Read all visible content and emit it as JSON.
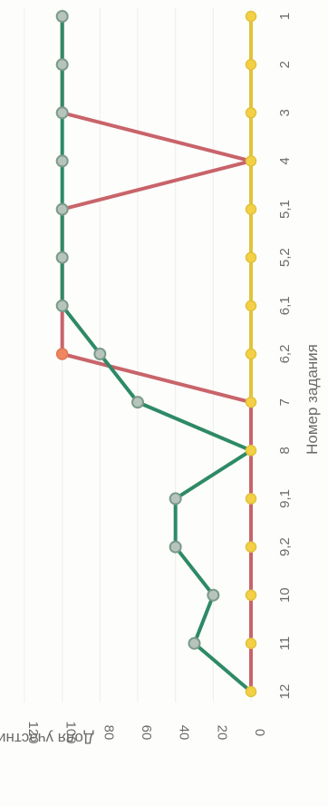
{
  "chart_data": {
    "type": "line",
    "title": "",
    "xlabel": "Номер задания",
    "ylabel": "Доля участников, %",
    "categories": [
      "1",
      "2",
      "3",
      "4",
      "5,1",
      "5,2",
      "6,1",
      "6,2",
      "7",
      "8",
      "9,1",
      "9,2",
      "10",
      "11",
      "12"
    ],
    "ylim": [
      0,
      120
    ],
    "yticks": [
      "0",
      "20",
      "40",
      "60",
      "80",
      "100",
      "120"
    ],
    "grid": true,
    "legend": "none",
    "orientation": "rotated-90",
    "series": [
      {
        "color": "#e2c239",
        "values": [
          0,
          0,
          0,
          0,
          0,
          0,
          0,
          0,
          0,
          0,
          0,
          0,
          0,
          0,
          0
        ]
      },
      {
        "color": "#c8646a",
        "values": [
          100,
          100,
          100,
          0,
          100,
          100,
          100,
          100,
          0,
          0,
          0,
          0,
          0,
          0,
          0
        ]
      },
      {
        "color": "#2e8a66",
        "values": [
          100,
          100,
          100,
          100,
          100,
          100,
          100,
          80,
          60,
          0,
          40,
          40,
          20,
          30,
          0
        ]
      }
    ]
  },
  "colors": {
    "grid": "#eeeeee",
    "highlight_marker": "#ef8660",
    "marker_fill": "#b7c4bd",
    "text": "#6b6b6b"
  }
}
